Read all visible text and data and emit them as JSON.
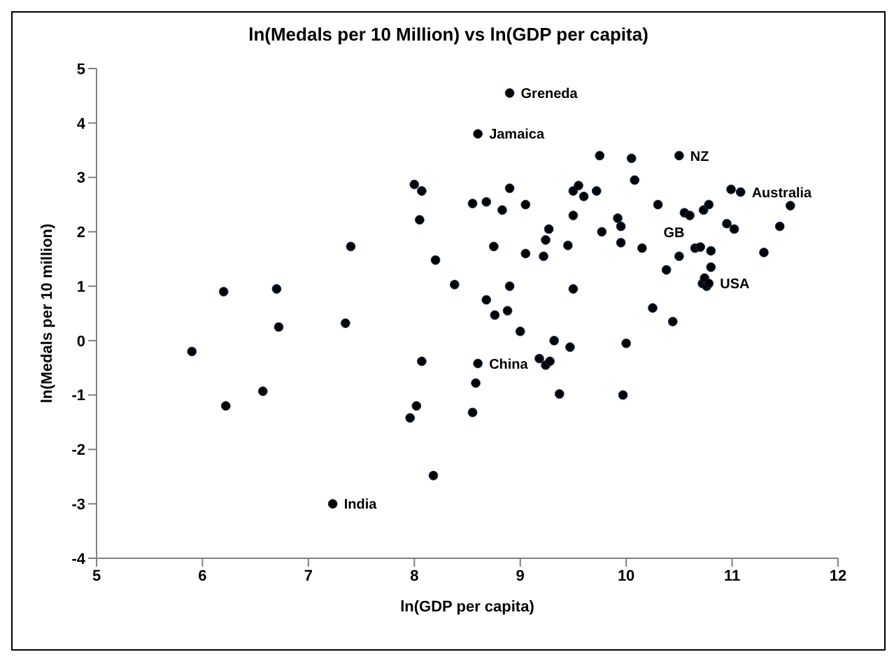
{
  "chart_data": {
    "type": "scatter",
    "title": "ln(Medals per 10 Million) vs ln(GDP per capita)",
    "xlabel": "ln(GDP per capita)",
    "ylabel": "ln(Medals per 10 million)",
    "xlim": [
      5,
      12
    ],
    "xticks": [
      5,
      6,
      7,
      8,
      9,
      10,
      11,
      12
    ],
    "ylim": [
      -4,
      5
    ],
    "yticks": [
      -4,
      -3,
      -2,
      -1,
      0,
      1,
      2,
      3,
      4,
      5
    ],
    "grid": false,
    "legend": false,
    "marker": "circle",
    "series": [
      {
        "color": "#000000",
        "x": [
          5.9,
          6.2,
          6.22,
          6.57,
          6.7,
          6.72,
          7.35,
          7.4,
          7.23,
          7.96,
          8.0,
          8.02,
          8.05,
          8.07,
          8.07,
          8.18,
          8.2,
          8.38,
          8.55,
          8.55,
          8.58,
          8.6,
          8.6,
          8.9,
          8.68,
          8.68,
          8.75,
          8.76,
          8.83,
          8.88,
          8.9,
          8.9,
          9.0,
          9.05,
          9.05,
          9.18,
          9.22,
          9.24,
          9.24,
          9.27,
          9.28,
          9.32,
          9.37,
          9.45,
          9.47,
          9.5,
          9.5,
          9.5,
          9.55,
          9.6,
          9.72,
          9.75,
          9.77,
          9.92,
          9.95,
          9.95,
          9.97,
          10.0,
          10.05,
          10.08,
          10.15,
          10.25,
          10.3,
          10.38,
          10.44,
          10.5,
          10.5,
          10.55,
          10.6,
          10.65,
          10.7,
          10.72,
          10.73,
          10.74,
          10.76,
          10.78,
          10.78,
          10.8,
          10.8,
          10.95,
          10.99,
          11.02,
          11.08,
          11.3,
          11.45,
          11.55
        ],
        "values": [
          -0.2,
          0.9,
          -1.2,
          -0.93,
          0.95,
          0.25,
          0.32,
          1.73,
          -3.0,
          -1.42,
          2.87,
          -1.2,
          2.22,
          2.75,
          -0.38,
          -2.48,
          1.48,
          1.03,
          -1.32,
          2.52,
          -0.78,
          -0.42,
          3.8,
          4.55,
          2.55,
          0.75,
          1.73,
          0.47,
          2.4,
          0.55,
          1.0,
          2.8,
          0.17,
          2.5,
          1.6,
          -0.33,
          1.55,
          1.85,
          -0.45,
          2.05,
          -0.38,
          0.0,
          -0.98,
          1.75,
          -0.12,
          2.75,
          0.95,
          2.3,
          2.85,
          2.65,
          2.75,
          3.4,
          2.0,
          2.25,
          1.8,
          2.1,
          -1.0,
          -0.05,
          3.35,
          2.95,
          1.7,
          0.6,
          2.5,
          1.3,
          0.35,
          1.55,
          3.4,
          2.35,
          2.3,
          1.7,
          1.72,
          1.05,
          2.4,
          1.15,
          1.0,
          1.05,
          2.5,
          1.35,
          1.65,
          2.15,
          2.78,
          2.05,
          2.73,
          1.62,
          2.1,
          2.48
        ]
      }
    ],
    "annotations": [
      {
        "text": "Greneda",
        "x": 8.9,
        "y": 4.55
      },
      {
        "text": "Jamaica",
        "x": 8.6,
        "y": 3.8
      },
      {
        "text": "NZ",
        "x": 10.5,
        "y": 3.4
      },
      {
        "text": "Australia",
        "x": 11.08,
        "y": 2.73
      },
      {
        "text": "GB",
        "x": 10.55,
        "y": 2.35
      },
      {
        "text": "USA",
        "x": 10.78,
        "y": 1.05
      },
      {
        "text": "China",
        "x": 8.6,
        "y": -0.42
      },
      {
        "text": "India",
        "x": 7.23,
        "y": -3.0
      }
    ]
  }
}
